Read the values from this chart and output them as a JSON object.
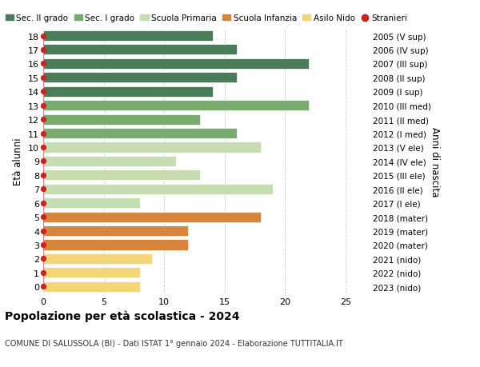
{
  "ages": [
    18,
    17,
    16,
    15,
    14,
    13,
    12,
    11,
    10,
    9,
    8,
    7,
    6,
    5,
    4,
    3,
    2,
    1,
    0
  ],
  "years": [
    "2005 (V sup)",
    "2006 (IV sup)",
    "2007 (III sup)",
    "2008 (II sup)",
    "2009 (I sup)",
    "2010 (III med)",
    "2011 (II med)",
    "2012 (I med)",
    "2013 (V ele)",
    "2014 (IV ele)",
    "2015 (III ele)",
    "2016 (II ele)",
    "2017 (I ele)",
    "2018 (mater)",
    "2019 (mater)",
    "2020 (mater)",
    "2021 (nido)",
    "2022 (nido)",
    "2023 (nido)"
  ],
  "values": [
    14,
    16,
    22,
    16,
    14,
    22,
    13,
    16,
    18,
    11,
    13,
    19,
    8,
    18,
    12,
    12,
    9,
    8,
    8
  ],
  "bar_colors": [
    "#4a7c59",
    "#4a7c59",
    "#4a7c59",
    "#4a7c59",
    "#4a7c59",
    "#7aab6e",
    "#7aab6e",
    "#7aab6e",
    "#c5ddb0",
    "#c5ddb0",
    "#c5ddb0",
    "#c5ddb0",
    "#c5ddb0",
    "#d8843a",
    "#d8843a",
    "#d8843a",
    "#f5d57a",
    "#f5d57a",
    "#f5d57a"
  ],
  "legend_labels": [
    "Sec. II grado",
    "Sec. I grado",
    "Scuola Primaria",
    "Scuola Infanzia",
    "Asilo Nido",
    "Stranieri"
  ],
  "legend_colors": [
    "#4a7c59",
    "#7aab6e",
    "#c5ddb0",
    "#d8843a",
    "#f5d57a",
    "#cc2222"
  ],
  "title": "Popolazione per età scolastica - 2024",
  "subtitle": "COMUNE DI SALUSSOLA (BI) - Dati ISTAT 1° gennaio 2024 - Elaborazione TUTTITALIA.IT",
  "ylabel": "Età alunni",
  "right_ylabel": "Anni di nascita",
  "xlim": [
    0,
    27
  ],
  "xticks": [
    0,
    5,
    10,
    15,
    20,
    25
  ],
  "bar_height": 0.75,
  "stranieri_dot_color": "#cc2222",
  "stranieri_line_color": "#cc8888",
  "background_color": "#ffffff",
  "grid_color": "#cccccc"
}
